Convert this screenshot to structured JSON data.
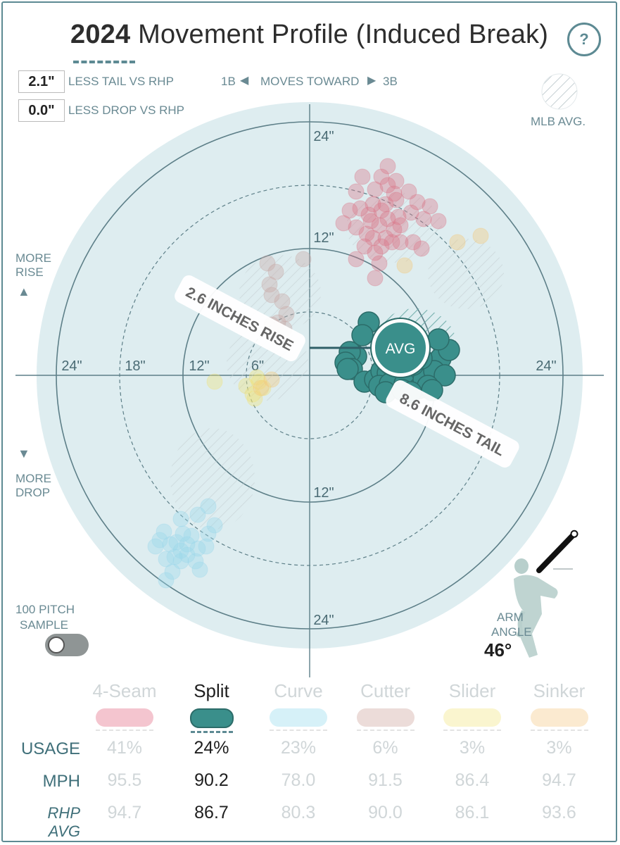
{
  "header": {
    "title_year": "2024",
    "title_rest": "Movement Profile (Induced Break)",
    "help_label": "?"
  },
  "stats": {
    "tail_value": "2.1\"",
    "tail_label": "LESS TAIL VS RHP",
    "drop_value": "0.0\"",
    "drop_label": "LESS DROP VS RHP"
  },
  "direction": {
    "left": "1B",
    "middle": "MOVES TOWARD",
    "right": "3B"
  },
  "legend": {
    "mlb_avg": "MLB AVG."
  },
  "axis": {
    "more_rise_1": "MORE",
    "more_rise_2": "RISE",
    "more_drop_1": "MORE",
    "more_drop_2": "DROP",
    "ring_labels": [
      "6\"",
      "12\"",
      "18\"",
      "24\""
    ]
  },
  "callouts": {
    "rise": "2.6 INCHES RISE",
    "tail": "8.6 INCHES TAIL",
    "avg": "AVG"
  },
  "sample": {
    "line1": "100 PITCH",
    "line2": "SAMPLE"
  },
  "arm": {
    "line1": "ARM",
    "line2": "ANGLE",
    "value": "46°"
  },
  "colors": {
    "accent": "#5d8a93",
    "split": "#3a8f8b",
    "split_edge": "#2c6c69",
    "fourseam": "#d9778a",
    "curve": "#9bd8ea",
    "cutter": "#c9a8a6",
    "slider": "#f0e27a",
    "sinker": "#f4c97a",
    "field": "#deedf0"
  },
  "table": {
    "row_labels": {
      "usage": "USAGE",
      "mph": "MPH",
      "rhp": "RHP AVG"
    },
    "pitches": [
      {
        "name": "4-Seam",
        "usage": "41%",
        "mph": "95.5",
        "rhp_avg": "94.7",
        "active": false
      },
      {
        "name": "Split",
        "usage": "24%",
        "mph": "90.2",
        "rhp_avg": "86.7",
        "active": true
      },
      {
        "name": "Curve",
        "usage": "23%",
        "mph": "78.0",
        "rhp_avg": "80.3",
        "active": false
      },
      {
        "name": "Cutter",
        "usage": "6%",
        "mph": "91.5",
        "rhp_avg": "90.0",
        "active": false
      },
      {
        "name": "Slider",
        "usage": "3%",
        "mph": "86.4",
        "rhp_avg": "86.1",
        "active": false
      },
      {
        "name": "Sinker",
        "usage": "3%",
        "mph": "94.7",
        "rhp_avg": "93.6",
        "active": false
      }
    ]
  },
  "chart_data": {
    "type": "scatter",
    "title": "2024 Movement Profile (Induced Break)",
    "units": "inches",
    "xlim": [
      -24,
      24
    ],
    "ylim": [
      -24,
      24
    ],
    "rings": [
      6,
      12,
      18,
      24
    ],
    "average": {
      "pitch": "Split",
      "x": 8.6,
      "y": 2.6
    },
    "series": [
      {
        "name": "Split",
        "active": true,
        "points": [
          [
            5.6,
            5.0
          ],
          [
            5.0,
            3.8
          ],
          [
            4.4,
            1.8
          ],
          [
            3.8,
            2.2
          ],
          [
            3.4,
            1.2
          ],
          [
            4.0,
            0.6
          ],
          [
            3.6,
            0.6
          ],
          [
            5.2,
            -0.6
          ],
          [
            6.2,
            -0.4
          ],
          [
            6.8,
            0.4
          ],
          [
            7.4,
            0.2
          ],
          [
            8.0,
            -0.4
          ],
          [
            8.6,
            -0.4
          ],
          [
            9.4,
            -0.2
          ],
          [
            10.2,
            0.2
          ],
          [
            11.0,
            0.6
          ],
          [
            11.6,
            1.0
          ],
          [
            12.4,
            1.6
          ],
          [
            13.2,
            2.4
          ],
          [
            12.2,
            3.4
          ],
          [
            6.6,
            -1.0
          ],
          [
            7.6,
            -0.8
          ],
          [
            9.0,
            -0.8
          ],
          [
            10.4,
            -1.2
          ],
          [
            10.8,
            -0.4
          ],
          [
            11.8,
            0.4
          ],
          [
            12.8,
            0.0
          ],
          [
            11.2,
            -1.0
          ],
          [
            11.6,
            -1.4
          ],
          [
            7.2,
            -1.6
          ],
          [
            9.8,
            1.0
          ],
          [
            10.6,
            1.6
          ],
          [
            8.8,
            -1.4
          ],
          [
            9.6,
            -1.6
          ]
        ]
      },
      {
        "name": "4-Seam",
        "active": false,
        "points": [
          [
            7.4,
            19.8
          ],
          [
            6.8,
            18.8
          ],
          [
            7.4,
            18.0
          ],
          [
            8.2,
            18.4
          ],
          [
            6.2,
            17.6
          ],
          [
            5.0,
            18.8
          ],
          [
            4.4,
            17.4
          ],
          [
            6.0,
            16.2
          ],
          [
            7.2,
            16.2
          ],
          [
            8.2,
            16.6
          ],
          [
            9.4,
            17.4
          ],
          [
            10.2,
            16.4
          ],
          [
            11.4,
            16.0
          ],
          [
            9.6,
            15.4
          ],
          [
            8.4,
            15.0
          ],
          [
            7.4,
            14.8
          ],
          [
            6.6,
            14.2
          ],
          [
            5.6,
            15.2
          ],
          [
            4.8,
            15.8
          ],
          [
            3.8,
            15.6
          ],
          [
            3.2,
            14.4
          ],
          [
            4.4,
            14.0
          ],
          [
            5.4,
            13.4
          ],
          [
            6.0,
            13.0
          ],
          [
            7.2,
            13.0
          ],
          [
            8.0,
            13.8
          ],
          [
            8.6,
            12.6
          ],
          [
            9.8,
            12.6
          ],
          [
            6.2,
            11.6
          ],
          [
            5.2,
            12.2
          ],
          [
            4.4,
            11.0
          ],
          [
            6.6,
            10.6
          ],
          [
            10.6,
            12.0
          ],
          [
            7.8,
            12.6
          ],
          [
            5.8,
            14.6
          ],
          [
            6.8,
            15.6
          ],
          [
            8.6,
            14.2
          ],
          [
            10.8,
            14.8
          ],
          [
            12.2,
            14.6
          ],
          [
            8.0,
            17.2
          ],
          [
            6.2,
            9.2
          ],
          [
            6.8,
            12.2
          ]
        ]
      },
      {
        "name": "Curve",
        "active": false,
        "points": [
          [
            -9.6,
            -12.4
          ],
          [
            -10.6,
            -13.2
          ],
          [
            -12.2,
            -13.6
          ],
          [
            -9.0,
            -14.2
          ],
          [
            -9.6,
            -15.0
          ],
          [
            -11.2,
            -15.2
          ],
          [
            -12.0,
            -15.0
          ],
          [
            -13.8,
            -14.8
          ],
          [
            -14.2,
            -15.6
          ],
          [
            -13.2,
            -16.0
          ],
          [
            -12.2,
            -16.6
          ],
          [
            -10.6,
            -16.4
          ],
          [
            -9.8,
            -16.2
          ],
          [
            -11.6,
            -17.0
          ],
          [
            -13.6,
            -17.4
          ],
          [
            -14.6,
            -16.2
          ],
          [
            -10.8,
            -17.6
          ],
          [
            -12.2,
            -17.6
          ],
          [
            -13.0,
            -18.6
          ],
          [
            -11.6,
            -16.0
          ],
          [
            -12.6,
            -15.8
          ],
          [
            -13.6,
            -19.4
          ],
          [
            -10.4,
            -18.4
          ],
          [
            -12.8,
            -17.2
          ]
        ]
      },
      {
        "name": "Cutter",
        "active": false,
        "points": [
          [
            -4.0,
            10.6
          ],
          [
            -3.2,
            9.8
          ],
          [
            -3.8,
            8.6
          ],
          [
            -3.6,
            7.6
          ],
          [
            -2.6,
            7.0
          ],
          [
            -2.2,
            5.8
          ],
          [
            -0.6,
            11.0
          ],
          [
            -3.0,
            5.0
          ],
          [
            -3.6,
            4.8
          ],
          [
            -2.4,
            4.4
          ]
        ]
      },
      {
        "name": "Slider",
        "active": false,
        "points": [
          [
            -9.0,
            -0.6
          ],
          [
            -4.8,
            -0.6
          ],
          [
            -5.4,
            -1.8
          ],
          [
            -5.2,
            -2.2
          ],
          [
            -4.4,
            -1.2
          ],
          [
            -5.0,
            -0.2
          ],
          [
            -6.0,
            -1.0
          ]
        ]
      },
      {
        "name": "Sinker",
        "active": false,
        "points": [
          [
            14.0,
            12.6
          ],
          [
            16.2,
            13.2
          ],
          [
            9.0,
            10.4
          ],
          [
            -4.6,
            -1.2
          ],
          [
            -3.6,
            -0.4
          ]
        ]
      }
    ],
    "mlb_avg_regions": [
      {
        "pitch": "Split",
        "x": 10.0,
        "y": 3.0
      },
      {
        "pitch": "4-Seam",
        "x": 8.0,
        "y": 14.0
      },
      {
        "pitch": "Sinker",
        "x": 14.8,
        "y": 9.6
      },
      {
        "pitch": "Cutter",
        "x": -2.8,
        "y": 7.8
      },
      {
        "pitch": "Slider",
        "x": -4.0,
        "y": 1.2
      },
      {
        "pitch": "Curve",
        "x": -9.2,
        "y": -9.8
      }
    ],
    "arm_angle_degrees": 46
  }
}
